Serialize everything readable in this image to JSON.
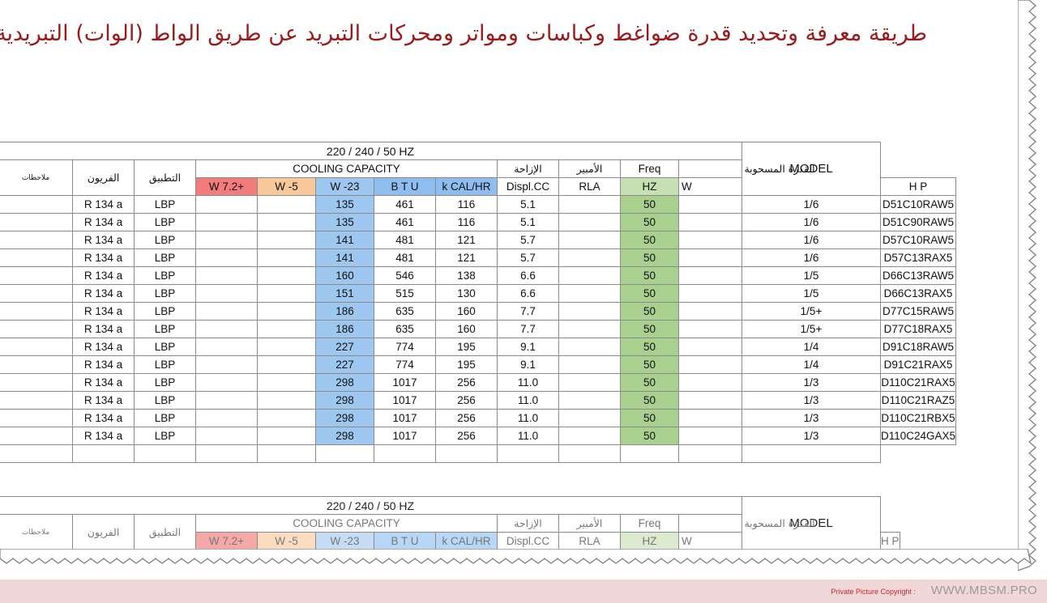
{
  "heading": "طريقة معرفة وتحديد قدرة ضواغط وكباسات ومواتر ومحركات التبريد عن طريق الواط (الوات) التبريدية",
  "table_header": {
    "power_supply": "220 / 240 / 50 HZ",
    "notes": "ملاحظات",
    "refrigerant": "الفريون",
    "application": "التطبيق",
    "cooling_capacity": "COOLING CAPACITY",
    "displacement_ar": "الإزاحة",
    "ampere_ar": "الأمبير",
    "freq": "Freq",
    "power_drawn_ar": "القدرة المسحوبة",
    "model": "MODEL",
    "w_plus_7_2": "W  7.2+",
    "w_minus_5": "W   -5",
    "w_minus_23": "W -23",
    "btu": "B T U",
    "kcal_hr": "k CAL/HR",
    "displ_cc": "Displ.CC",
    "rla": "RLA",
    "hz": "HZ",
    "watt": "W",
    "hp": "H P"
  },
  "rows": [
    {
      "refrigerant": "R 134 a",
      "application": "LBP",
      "w_minus_23": "135",
      "btu": "461",
      "kcal": "116",
      "displ": "5.1",
      "hz": "50",
      "hp": "1/6",
      "model": "D51C10RAW5"
    },
    {
      "refrigerant": "R 134 a",
      "application": "LBP",
      "w_minus_23": "135",
      "btu": "461",
      "kcal": "116",
      "displ": "5.1",
      "hz": "50",
      "hp": "1/6",
      "model": "D51C90RAW5"
    },
    {
      "refrigerant": "R 134 a",
      "application": "LBP",
      "w_minus_23": "141",
      "btu": "481",
      "kcal": "121",
      "displ": "5.7",
      "hz": "50",
      "hp": "1/6",
      "model": "D57C10RAW5"
    },
    {
      "refrigerant": "R 134 a",
      "application": "LBP",
      "w_minus_23": "141",
      "btu": "481",
      "kcal": "121",
      "displ": "5.7",
      "hz": "50",
      "hp": "1/6",
      "model": "D57C13RAX5"
    },
    {
      "refrigerant": "R 134 a",
      "application": "LBP",
      "w_minus_23": "160",
      "btu": "546",
      "kcal": "138",
      "displ": "6.6",
      "hz": "50",
      "hp": "1/5",
      "model": "D66C13RAW5"
    },
    {
      "refrigerant": "R 134 a",
      "application": "LBP",
      "w_minus_23": "151",
      "btu": "515",
      "kcal": "130",
      "displ": "6.6",
      "hz": "50",
      "hp": "1/5",
      "model": "D66C13RAX5"
    },
    {
      "refrigerant": "R 134 a",
      "application": "LBP",
      "w_minus_23": "186",
      "btu": "635",
      "kcal": "160",
      "displ": "7.7",
      "hz": "50",
      "hp": "1/5+",
      "model": "D77C15RAW5"
    },
    {
      "refrigerant": "R 134 a",
      "application": "LBP",
      "w_minus_23": "186",
      "btu": "635",
      "kcal": "160",
      "displ": "7.7",
      "hz": "50",
      "hp": "1/5+",
      "model": "D77C18RAX5"
    },
    {
      "refrigerant": "R 134 a",
      "application": "LBP",
      "w_minus_23": "227",
      "btu": "774",
      "kcal": "195",
      "displ": "9.1",
      "hz": "50",
      "hp": "1/4",
      "model": "D91C18RAW5"
    },
    {
      "refrigerant": "R 134 a",
      "application": "LBP",
      "w_minus_23": "227",
      "btu": "774",
      "kcal": "195",
      "displ": "9.1",
      "hz": "50",
      "hp": "1/4",
      "model": "D91C21RAX5"
    },
    {
      "refrigerant": "R 134 a",
      "application": "LBP",
      "w_minus_23": "298",
      "btu": "1017",
      "kcal": "256",
      "displ": "11.0",
      "hz": "50",
      "hp": "1/3",
      "model": "D110C21RAX5"
    },
    {
      "refrigerant": "R 134 a",
      "application": "LBP",
      "w_minus_23": "298",
      "btu": "1017",
      "kcal": "256",
      "displ": "11.0",
      "hz": "50",
      "hp": "1/3",
      "model": "D110C21RAZ5"
    },
    {
      "refrigerant": "R 134 a",
      "application": "LBP",
      "w_minus_23": "298",
      "btu": "1017",
      "kcal": "256",
      "displ": "11.0",
      "hz": "50",
      "hp": "1/3",
      "model": "D110C21RBX5"
    },
    {
      "refrigerant": "R 134 a",
      "application": "LBP",
      "w_minus_23": "298",
      "btu": "1017",
      "kcal": "256",
      "displ": "11.0",
      "hz": "50",
      "hp": "1/3",
      "model": "D110C24GAX5"
    }
  ],
  "footer": {
    "copyright_label": "Private Picture Copyright :",
    "site": "WWW.MBSM.PRO"
  },
  "colors": {
    "heading": "#9a1b1b",
    "w_plus_7_2": "#f27b7b",
    "w_minus_5": "#f8c89a",
    "w_minus_23": "#9ec7ef",
    "hz": "#a9d08e",
    "footer_band": "#f2d7d9"
  }
}
